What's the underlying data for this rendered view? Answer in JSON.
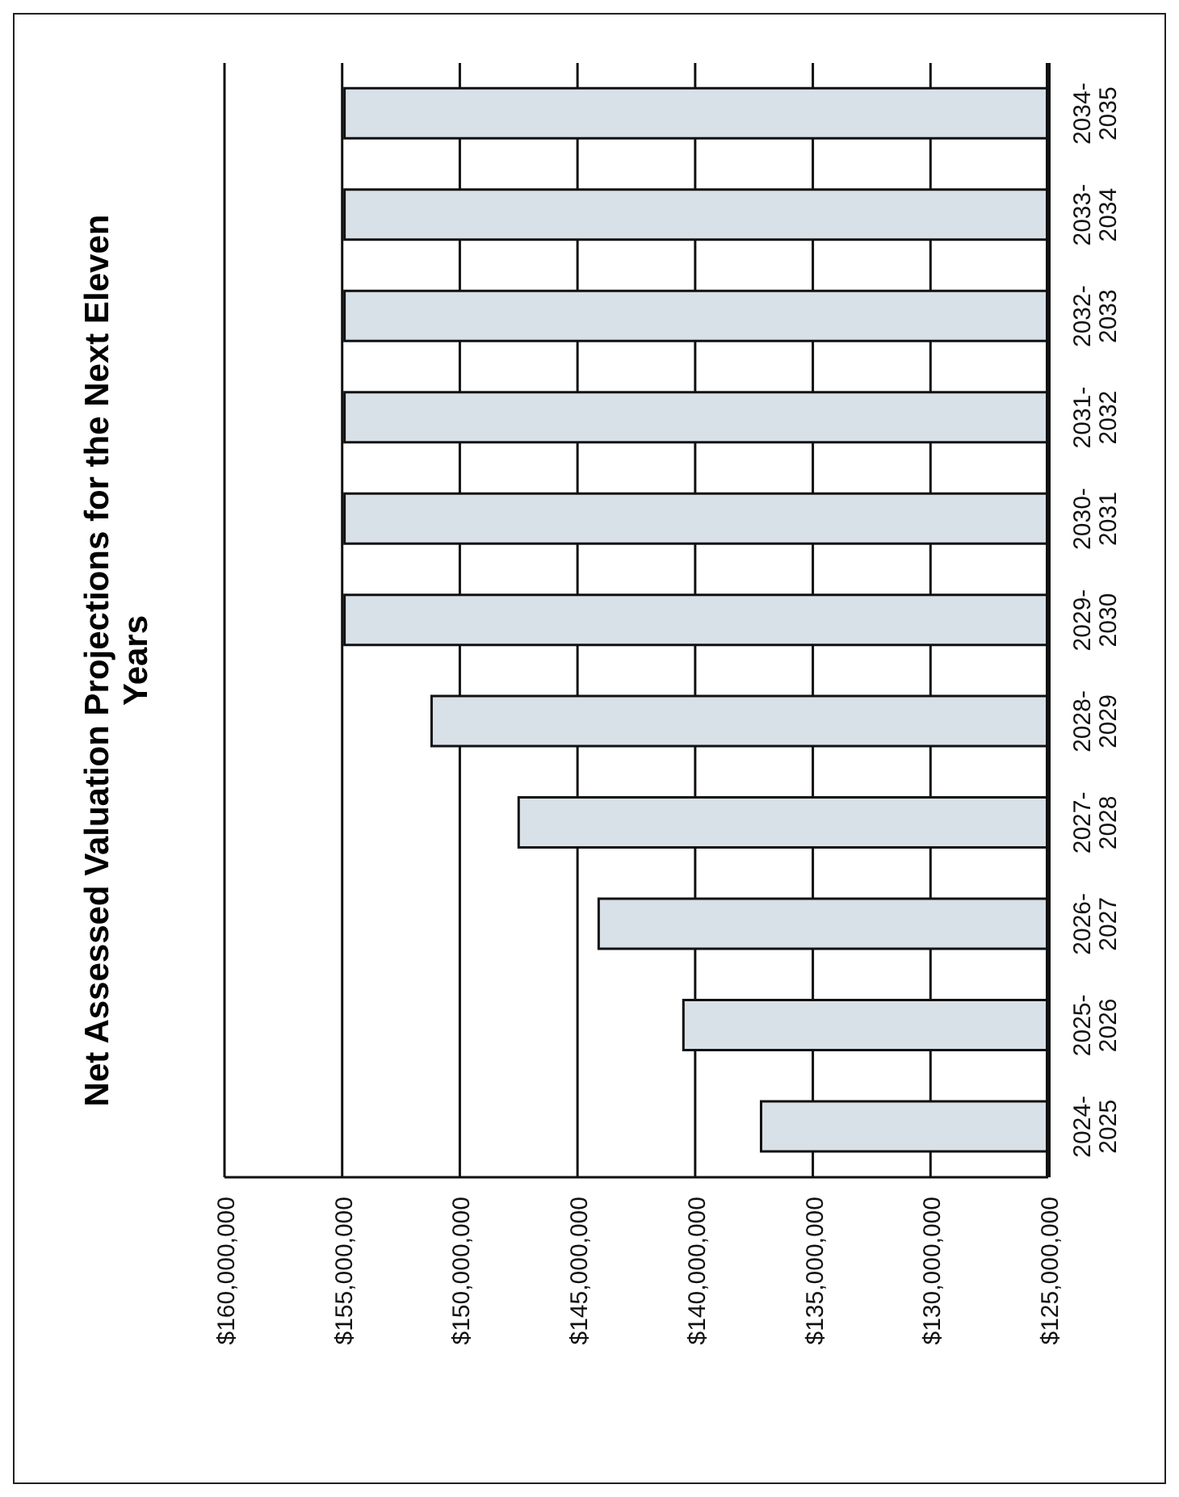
{
  "chart_data": {
    "type": "bar",
    "orientation": "horizontal",
    "title": "Net Assessed Valuation Projections for the Next Eleven Years",
    "categories": [
      "2034-2035",
      "2033-2034",
      "2032-2033",
      "2031-2032",
      "2030-2031",
      "2029-2030",
      "2028-2029",
      "2027-2028",
      "2026-2027",
      "2025-2026",
      "2024-2025"
    ],
    "values": [
      154900000,
      154900000,
      154900000,
      154900000,
      154900000,
      154900000,
      151200000,
      147500000,
      144100000,
      140500000,
      137200000
    ],
    "color": "#d8e0e8",
    "xlim": [
      160000000,
      125000000
    ],
    "xticks": [
      {
        "value": 160000000,
        "label": "$160,000,000"
      },
      {
        "value": 155000000,
        "label": "$155,000,000"
      },
      {
        "value": 150000000,
        "label": "$150,000,000"
      },
      {
        "value": 145000000,
        "label": "$145,000,000"
      },
      {
        "value": 140000000,
        "label": "$140,000,000"
      },
      {
        "value": 135000000,
        "label": "$135,000,000"
      },
      {
        "value": 130000000,
        "label": "$130,000,000"
      },
      {
        "value": 125000000,
        "label": "$125,000,000"
      }
    ],
    "grid": "x"
  }
}
